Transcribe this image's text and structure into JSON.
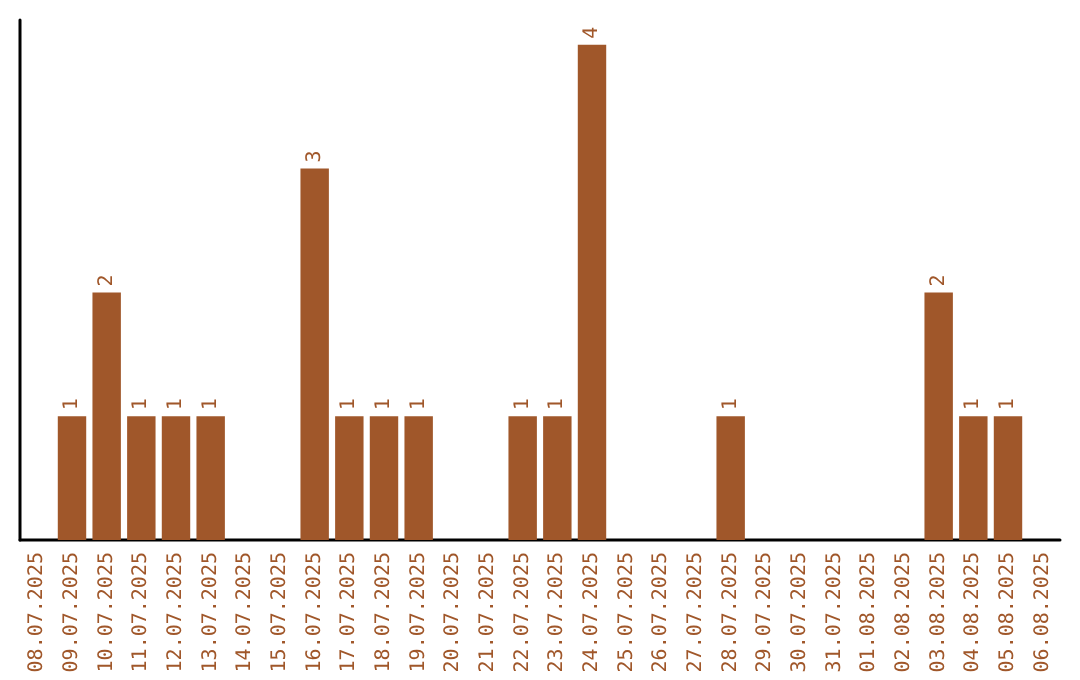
{
  "chart_data": {
    "type": "bar",
    "categories": [
      "08.07.2025",
      "09.07.2025",
      "10.07.2025",
      "11.07.2025",
      "12.07.2025",
      "13.07.2025",
      "14.07.2025",
      "15.07.2025",
      "16.07.2025",
      "17.07.2025",
      "18.07.2025",
      "19.07.2025",
      "20.07.2025",
      "21.07.2025",
      "22.07.2025",
      "23.07.2025",
      "24.07.2025",
      "25.07.2025",
      "26.07.2025",
      "27.07.2025",
      "28.07.2025",
      "29.07.2025",
      "30.07.2025",
      "31.07.2025",
      "01.08.2025",
      "02.08.2025",
      "03.08.2025",
      "04.08.2025",
      "05.08.2025",
      "06.08.2025"
    ],
    "values": [
      0,
      1,
      2,
      1,
      1,
      1,
      0,
      0,
      3,
      1,
      1,
      1,
      0,
      0,
      1,
      1,
      4,
      0,
      0,
      0,
      1,
      0,
      0,
      0,
      0,
      0,
      2,
      1,
      1,
      0
    ],
    "value_labels": [
      null,
      "1",
      "2",
      "1",
      "1",
      "1",
      null,
      null,
      "3",
      "1",
      "1",
      "1",
      null,
      null,
      "1",
      "1",
      "4",
      null,
      null,
      null,
      "1",
      null,
      null,
      null,
      null,
      null,
      "2",
      "1",
      "1",
      null
    ],
    "color": "#a0572a",
    "ylim": [
      0,
      4.2
    ],
    "tick_labels": "x"
  }
}
